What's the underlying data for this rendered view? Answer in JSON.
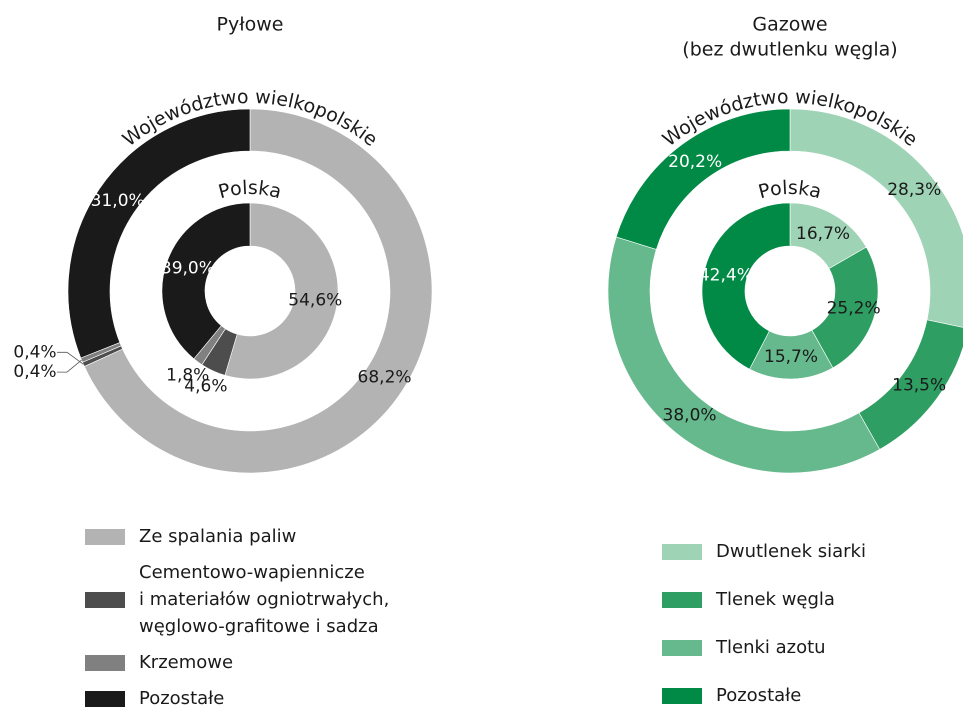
{
  "chart_data": [
    {
      "type": "donut",
      "title": "Pyłowe",
      "categories": [
        "Ze spalania paliw",
        "Cementowo-wapiennicze\ni materiałów ogniotrwałych,\nwęglowo-grafitowe i sadza",
        "Krzemowe",
        "Pozostałe"
      ],
      "colors": [
        "#b3b3b3",
        "#4d4d4d",
        "#808080",
        "#1a1a1a"
      ],
      "series": [
        {
          "name": "Województwo wielkopolskie",
          "values": [
            68.2,
            0.4,
            0.4,
            31.0
          ],
          "value_labels": [
            "68,2%",
            "0,4%",
            "0,4%",
            "31,0%"
          ]
        },
        {
          "name": "Polska",
          "values": [
            54.6,
            4.6,
            1.8,
            39.0
          ],
          "value_labels": [
            "54,6%",
            "4,6%",
            "1,8%",
            "39,0%"
          ]
        }
      ]
    },
    {
      "type": "donut",
      "title": "Gazowe",
      "subtitle": "(bez dwutlenku węgla)",
      "categories": [
        "Dwutlenek siarki",
        "Tlenek węgla",
        "Tlenki azotu",
        "Pozostałe"
      ],
      "colors": [
        "#9fd3b6",
        "#2e9e62",
        "#66b98c",
        "#008a45"
      ],
      "series": [
        {
          "name": "Województwo wielkopolskie",
          "values": [
            28.3,
            13.5,
            38.0,
            20.2
          ],
          "value_labels": [
            "28,3%",
            "13,5%",
            "38,0%",
            "20,2%"
          ]
        },
        {
          "name": "Polska",
          "values": [
            16.7,
            25.2,
            15.7,
            42.4
          ],
          "value_labels": [
            "16,7%",
            "25,2%",
            "15,7%",
            "42,4%"
          ]
        }
      ]
    }
  ]
}
